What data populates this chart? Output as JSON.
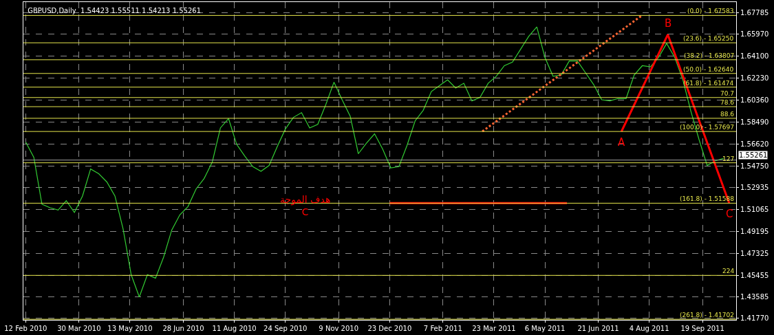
{
  "chart_data": {
    "type": "line",
    "title": "GBPUSD,Daily  1.54423 1.55511 1.54213 1.55261",
    "x": [
      "2010-02-12",
      "2010-02-19",
      "2010-02-26",
      "2010-03-05",
      "2010-03-12",
      "2010-03-19",
      "2010-03-26",
      "2010-04-02",
      "2010-04-09",
      "2010-04-16",
      "2010-04-23",
      "2010-04-30",
      "2010-05-07",
      "2010-05-14",
      "2010-05-21",
      "2010-05-28",
      "2010-06-04",
      "2010-06-11",
      "2010-06-18",
      "2010-06-25",
      "2010-07-02",
      "2010-07-09",
      "2010-07-16",
      "2010-07-23",
      "2010-07-30",
      "2010-08-06",
      "2010-08-13",
      "2010-08-20",
      "2010-08-27",
      "2010-09-03",
      "2010-09-10",
      "2010-09-17",
      "2010-09-24",
      "2010-10-01",
      "2010-10-08",
      "2010-10-15",
      "2010-10-22",
      "2010-10-29",
      "2010-11-05",
      "2010-11-12",
      "2010-11-19",
      "2010-11-26",
      "2010-12-03",
      "2010-12-10",
      "2010-12-17",
      "2010-12-24",
      "2010-12-31",
      "2011-01-07",
      "2011-01-14",
      "2011-01-21",
      "2011-01-28",
      "2011-02-04",
      "2011-02-11",
      "2011-02-18",
      "2011-02-25",
      "2011-03-04",
      "2011-03-11",
      "2011-03-18",
      "2011-03-25",
      "2011-04-01",
      "2011-04-08",
      "2011-04-15",
      "2011-04-22",
      "2011-04-29",
      "2011-05-06",
      "2011-05-13",
      "2011-05-20",
      "2011-05-27",
      "2011-06-03",
      "2011-06-10",
      "2011-06-17",
      "2011-06-24",
      "2011-07-01",
      "2011-07-08",
      "2011-07-15",
      "2011-07-22",
      "2011-07-29",
      "2011-08-05",
      "2011-08-12",
      "2011-08-19",
      "2011-08-26",
      "2011-09-02",
      "2011-09-09",
      "2011-09-16",
      "2011-09-23",
      "2011-09-30",
      "2011-10-07"
    ],
    "series": [
      {
        "color": "#33cc33",
        "line_style": "solid",
        "values": [
          1.568,
          1.555,
          1.515,
          1.512,
          1.51,
          1.518,
          1.508,
          1.522,
          1.545,
          1.541,
          1.534,
          1.522,
          1.494,
          1.455,
          1.436,
          1.455,
          1.452,
          1.47,
          1.493,
          1.506,
          1.513,
          1.528,
          1.537,
          1.551,
          1.58,
          1.588,
          1.566,
          1.556,
          1.547,
          1.543,
          1.548,
          1.564,
          1.579,
          1.589,
          1.593,
          1.58,
          1.583,
          1.6,
          1.619,
          1.604,
          1.59,
          1.558,
          1.567,
          1.575,
          1.562,
          1.546,
          1.547,
          1.565,
          1.586,
          1.595,
          1.611,
          1.616,
          1.621,
          1.614,
          1.618,
          1.603,
          1.606,
          1.618,
          1.624,
          1.633,
          1.636,
          1.647,
          1.658,
          1.666,
          1.64,
          1.624,
          1.625,
          1.637,
          1.637,
          1.627,
          1.617,
          1.604,
          1.603,
          1.605,
          1.605,
          1.625,
          1.633,
          1.632,
          1.64,
          1.652,
          1.64,
          1.621,
          1.594,
          1.57,
          1.548,
          1.552,
          1.554
        ]
      },
      {
        "type": "line",
        "color": "#ff0000",
        "line_style": "solid",
        "x": [
          "2011-07-11",
          "2011-08-20",
          "2011-10-12"
        ],
        "values": [
          1.5769,
          1.6595,
          1.5159
        ]
      },
      {
        "type": "line",
        "color": "#ff0000",
        "line_style": "solid",
        "x": [
          "2010-12-23",
          "2011-05-25"
        ],
        "values": [
          1.5159,
          1.5159
        ]
      },
      {
        "type": "line",
        "color": "#ff6633",
        "line_style": "dotted",
        "x": [
          "2011-03-13",
          "2011-07-29"
        ],
        "values": [
          1.577,
          1.676
        ]
      }
    ],
    "xlim": [
      "2010-02-10",
      "2011-10-18"
    ],
    "xticks": [
      {
        "value": "2010-02-12",
        "label": "12 Feb 2010"
      },
      {
        "value": "2010-03-30",
        "label": "30 Mar 2010"
      },
      {
        "value": "2010-05-13",
        "label": "13 May 2010"
      },
      {
        "value": "2010-06-28",
        "label": "28 Jun 2010"
      },
      {
        "value": "2010-08-11",
        "label": "11 Aug 2010"
      },
      {
        "value": "2010-09-24",
        "label": "24 Sep 2010"
      },
      {
        "value": "2010-11-09",
        "label": "9 Nov 2010"
      },
      {
        "value": "2010-12-23",
        "label": "23 Dec 2010"
      },
      {
        "value": "2011-02-07",
        "label": "7 Feb 2011"
      },
      {
        "value": "2011-03-23",
        "label": "23 Mar 2011"
      },
      {
        "value": "2011-05-06",
        "label": "6 May 2011"
      },
      {
        "value": "2011-06-21",
        "label": "21 Jun 2011"
      },
      {
        "value": "2011-08-04",
        "label": "4 Aug 2011"
      },
      {
        "value": "2011-09-19",
        "label": "19 Sep 2011"
      }
    ],
    "ylim": [
      1.4165,
      1.6872
    ],
    "yticks": [
      1.67785,
      {
        "value": 1.6597,
        "label": "1.65970"
      },
      {
        "value": 1.641,
        "label": "1.64100"
      },
      {
        "value": 1.6223,
        "label": "1.62230"
      },
      {
        "value": 1.6036,
        "label": "1.60360"
      },
      {
        "value": 1.5849,
        "label": "1.58490"
      },
      {
        "value": 1.5662,
        "label": "1.56620"
      },
      {
        "value": 1.5475,
        "label": "1.54750"
      },
      1.52935,
      1.51065,
      1.49195,
      1.47325,
      1.45455,
      1.43585,
      {
        "value": 1.4177,
        "label": "1.41770"
      }
    ],
    "ref_lines": [
      {
        "axis": "y",
        "value": 1.67583,
        "color": "#e6e64c"
      },
      {
        "axis": "y",
        "value": 1.6525,
        "color": "#e6e64c"
      },
      {
        "axis": "y",
        "value": 1.63807,
        "color": "#e6e64c"
      },
      {
        "axis": "y",
        "value": 1.6264,
        "color": "#e6e64c"
      },
      {
        "axis": "y",
        "value": 1.61474,
        "color": "#e6e64c"
      },
      {
        "axis": "y",
        "value": 1.6059,
        "color": "#e6e64c"
      },
      {
        "axis": "y",
        "value": 1.5981,
        "color": "#e6e64c"
      },
      {
        "axis": "y",
        "value": 1.5882,
        "color": "#e6e64c"
      },
      {
        "axis": "y",
        "value": 1.57697,
        "color": "#e6e64c"
      },
      {
        "axis": "y",
        "value": 1.5503,
        "color": "#e6e64c"
      },
      {
        "axis": "y",
        "value": 1.51588,
        "color": "#e6e64c"
      },
      {
        "axis": "y",
        "value": 1.4544,
        "color": "#e6e64c"
      },
      {
        "axis": "y",
        "value": 1.41702,
        "color": "#e6e64c"
      },
      {
        "axis": "y",
        "value": 1.55261,
        "label": "1.55261",
        "color": "#a0a0a0"
      }
    ],
    "annotations": [
      {
        "text": "A",
        "x": "2011-07-11",
        "y": 1.5769
      },
      {
        "text": "B",
        "x": "2011-08-20",
        "y": 1.6595
      },
      {
        "text": "C",
        "x": "2011-10-12",
        "y": 1.5159
      },
      {
        "text": "(0.0) - 1.67583",
        "x": "2011-10-18",
        "y": 1.67583
      },
      {
        "text": "(23.6) - 1.65250",
        "x": "2011-10-18",
        "y": 1.6525
      },
      {
        "text": "(38.2) - 1.63807",
        "x": "2011-10-18",
        "y": 1.63807
      },
      {
        "text": "(50.0) - 1.62640",
        "x": "2011-10-18",
        "y": 1.6264
      },
      {
        "text": "(61.8) - 1.61474",
        "x": "2011-10-18",
        "y": 1.61474
      },
      {
        "text": "70.7",
        "x": "2011-10-18",
        "y": 1.6059
      },
      {
        "text": "78.6",
        "x": "2011-10-18",
        "y": 1.5981
      },
      {
        "text": "88.6",
        "x": "2011-10-18",
        "y": 1.5882
      },
      {
        "text": "(100.0) - 1.57697",
        "x": "2011-10-18",
        "y": 1.57697
      },
      {
        "text": "127",
        "x": "2011-10-18",
        "y": 1.5503
      },
      {
        "text": "(161.8) - 1.51588",
        "x": "2011-10-18",
        "y": 1.51588
      },
      {
        "text": "224",
        "x": "2011-10-18",
        "y": 1.4544
      },
      {
        "text": "(261.8) - 1.41702",
        "x": "2011-10-18",
        "y": 1.41702
      },
      "هدف الموجة\nC"
    ],
    "grid": true,
    "marker": "none"
  }
}
